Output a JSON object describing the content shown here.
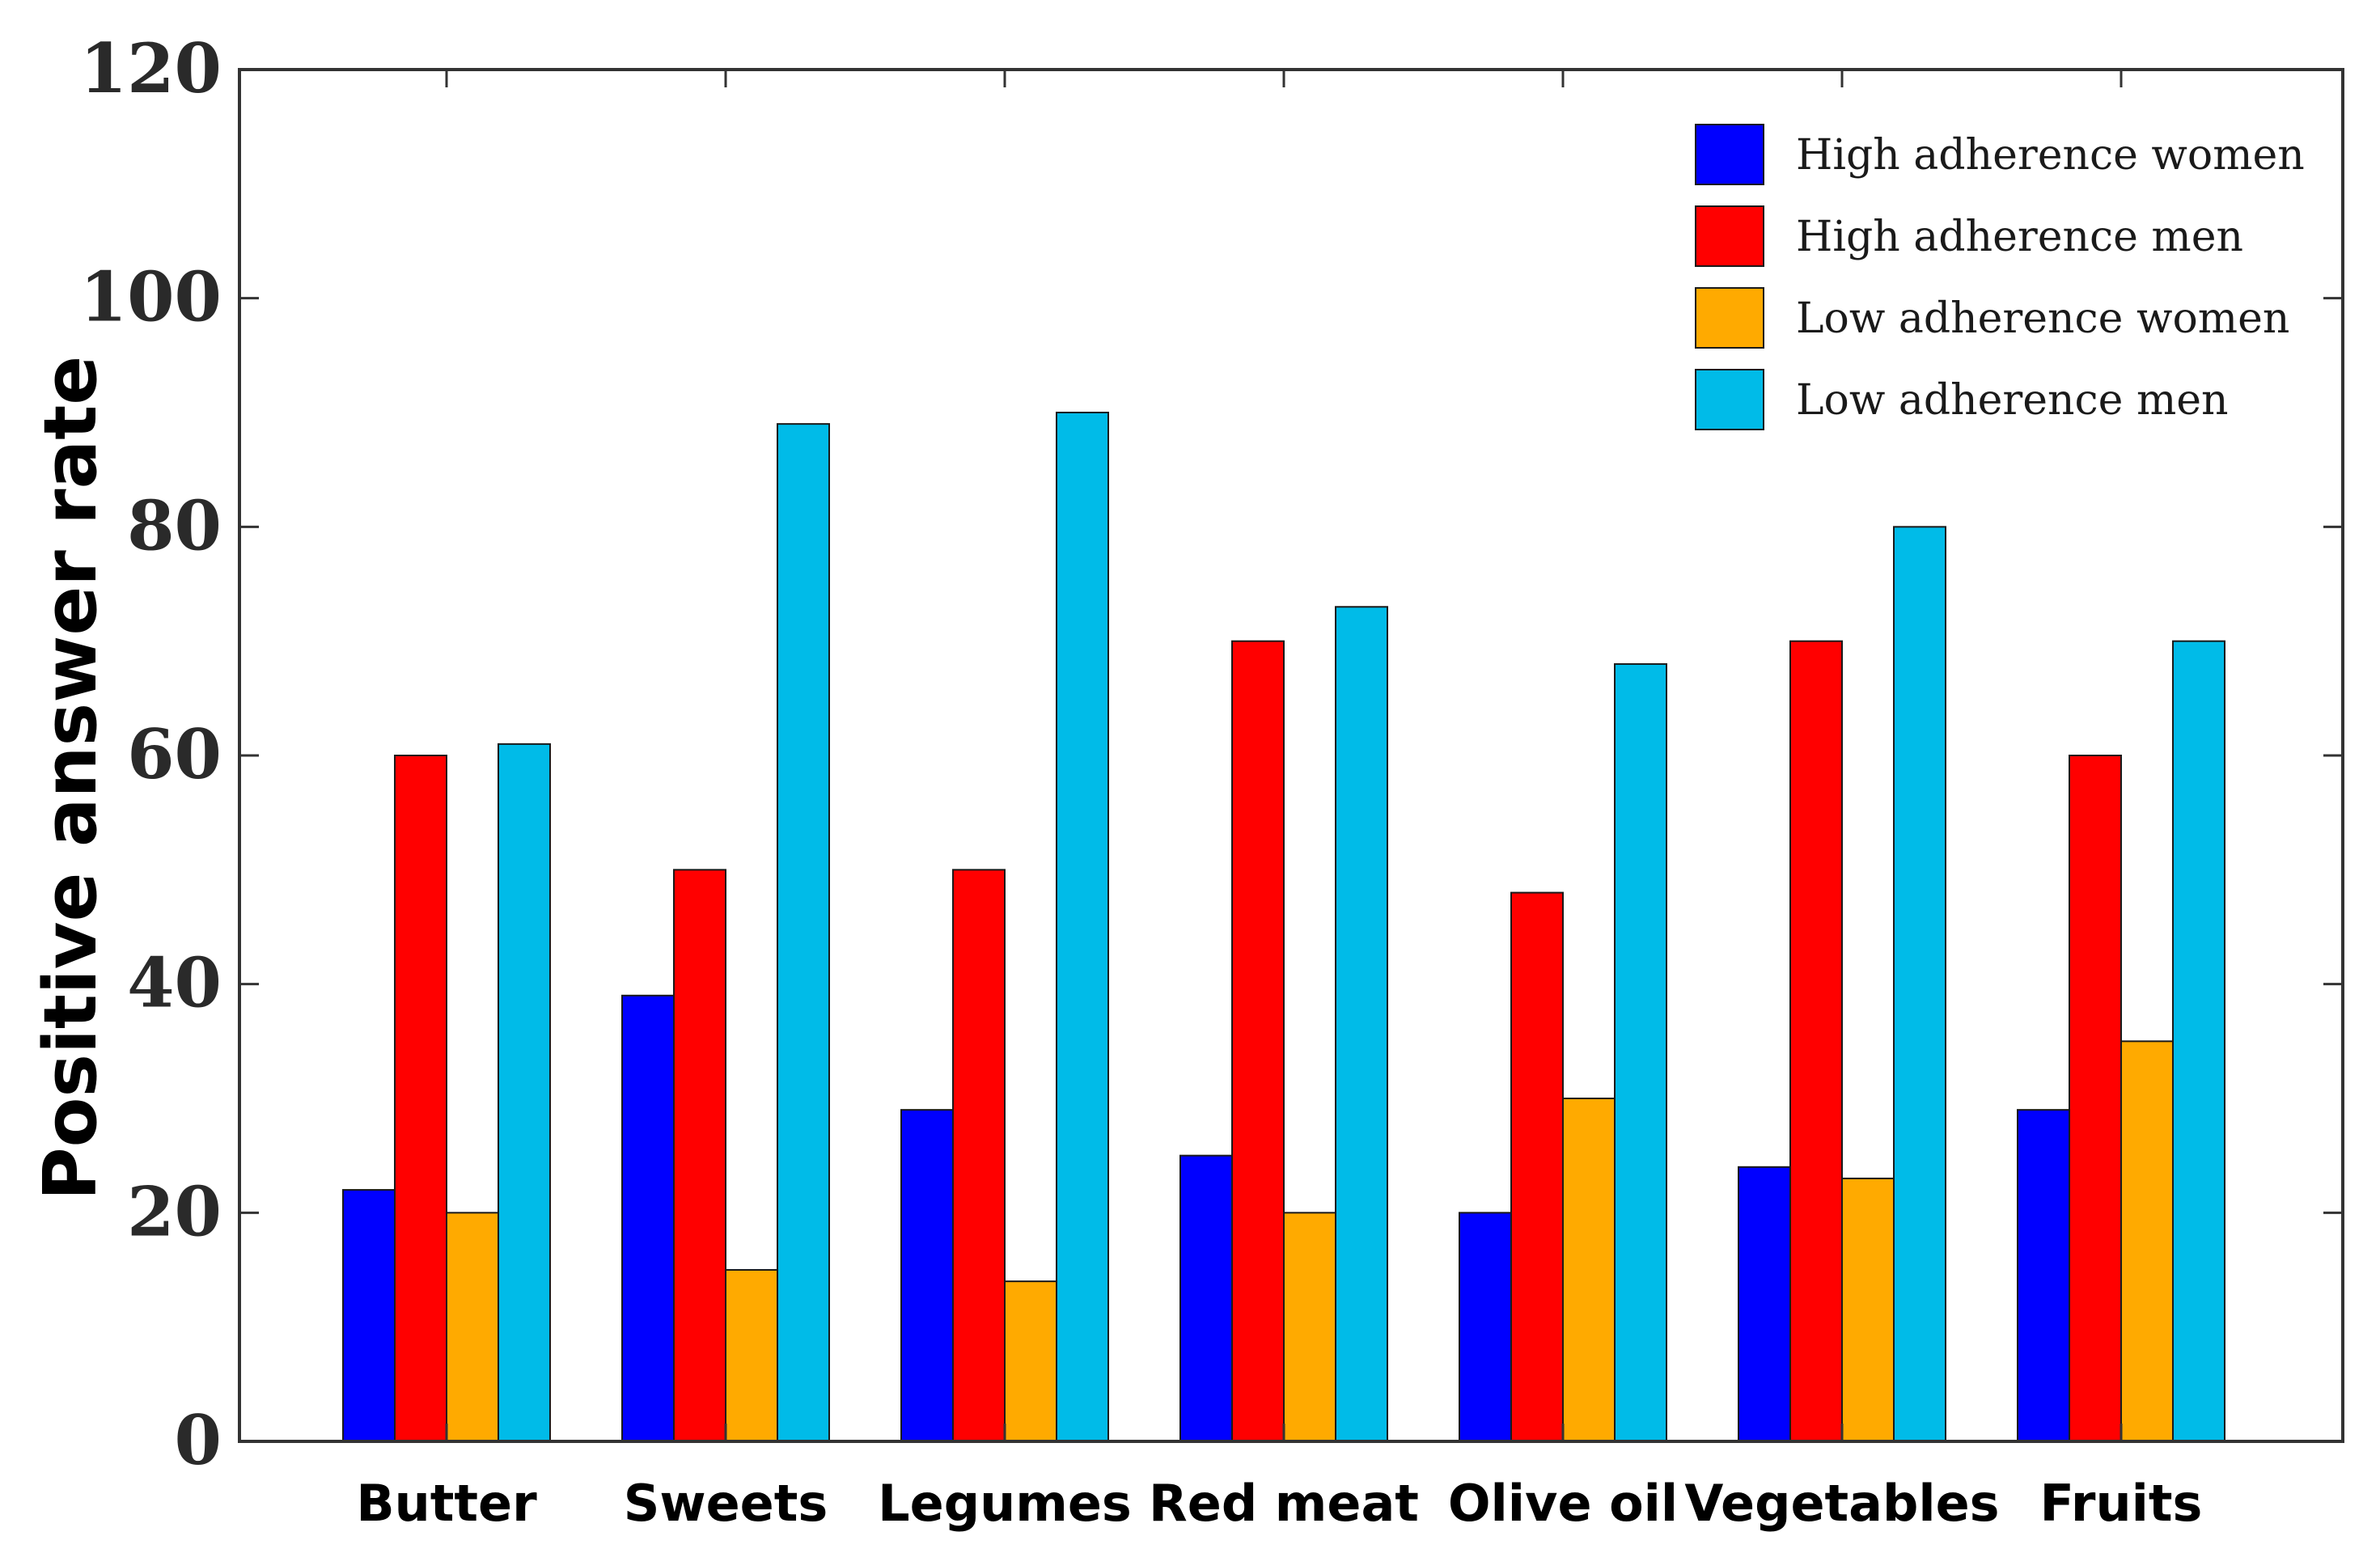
{
  "chart_data": {
    "type": "bar",
    "title": "",
    "xlabel": "",
    "ylabel": "Positive answer rate",
    "ylim": [
      0,
      120
    ],
    "yticks": [
      0,
      20,
      40,
      60,
      80,
      100,
      120
    ],
    "grid": false,
    "legend_position": "top-right",
    "categories": [
      "Butter",
      "Sweets",
      "Legumes",
      "Red meat",
      "Olive oil",
      "Vegetables",
      "Fruits"
    ],
    "series": [
      {
        "name": "High adherence women",
        "color": "#0000ff",
        "values": [
          22,
          39,
          29,
          25,
          20,
          24,
          29
        ]
      },
      {
        "name": "High adherence men",
        "color": "#ff0000",
        "values": [
          60,
          50,
          50,
          70,
          48,
          70,
          60
        ]
      },
      {
        "name": "Low adherence women",
        "color": "#ffaa00",
        "values": [
          20,
          15,
          14,
          20,
          30,
          23,
          35
        ]
      },
      {
        "name": "Low adherence men",
        "color": "#00bbe8",
        "values": [
          61,
          89,
          90,
          73,
          68,
          80,
          70
        ]
      }
    ]
  }
}
